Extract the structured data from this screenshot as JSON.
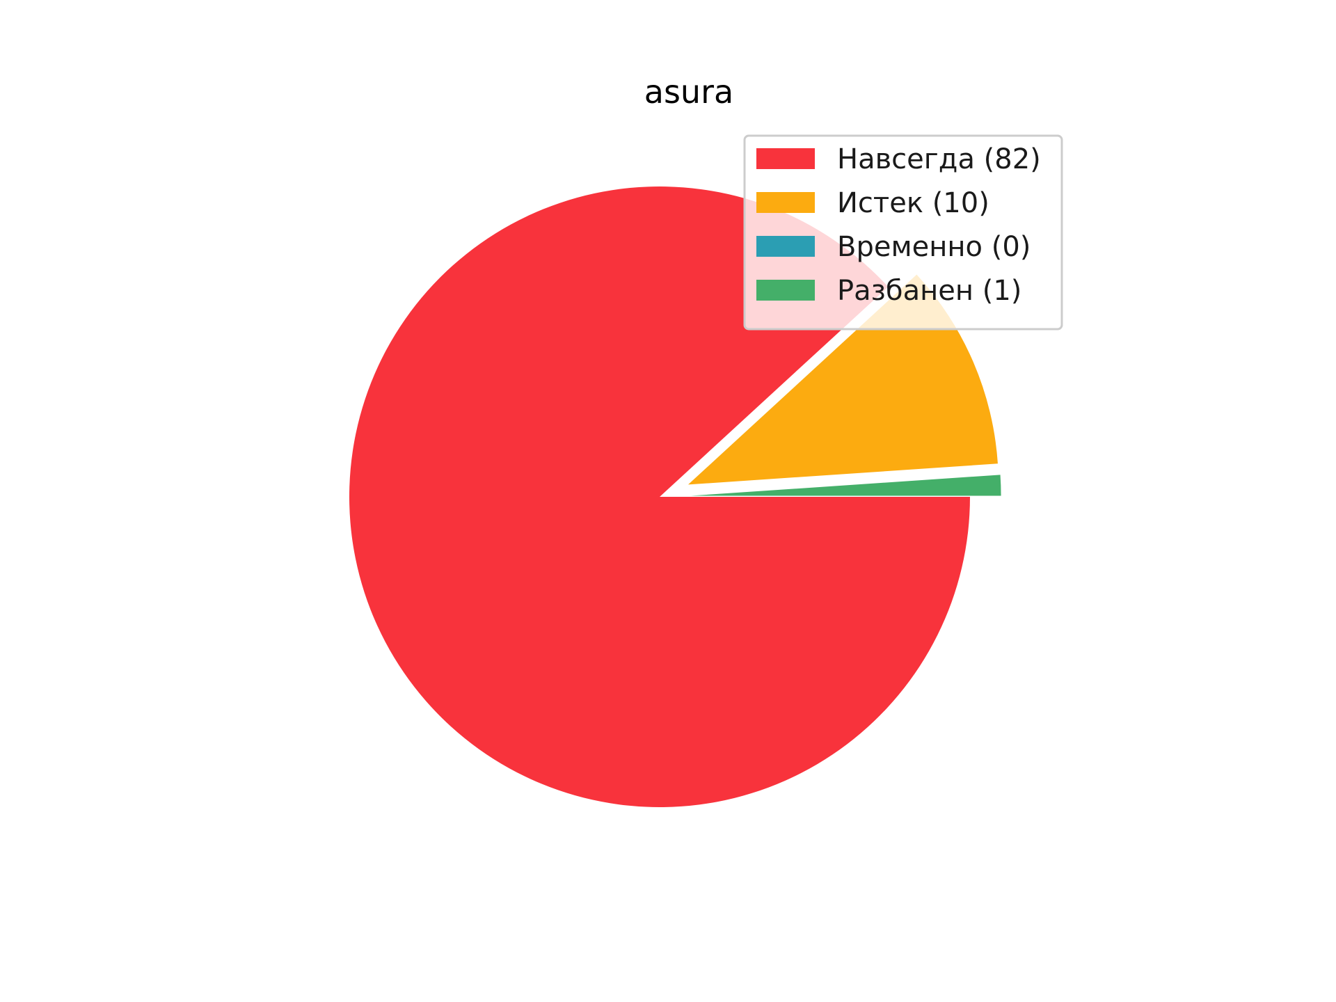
{
  "chart_data": {
    "type": "pie",
    "title": "asura",
    "start_angle_deg": 0,
    "direction": "clockwise",
    "slices": [
      {
        "label": "Навсегда (82)",
        "name": "Навсегда",
        "value": 82,
        "color": "#f8333c",
        "exploded": false
      },
      {
        "label": "Истек (10)",
        "name": "Истек",
        "value": 10,
        "color": "#fcab10",
        "exploded": true
      },
      {
        "label": "Временно (0)",
        "name": "Временно",
        "value": 0,
        "color": "#2b9eb3",
        "exploded": true
      },
      {
        "label": "Разбанен (1)",
        "name": "Разбанен",
        "value": 1,
        "color": "#44af69",
        "exploded": true
      }
    ],
    "legend_position": "upper-right"
  }
}
